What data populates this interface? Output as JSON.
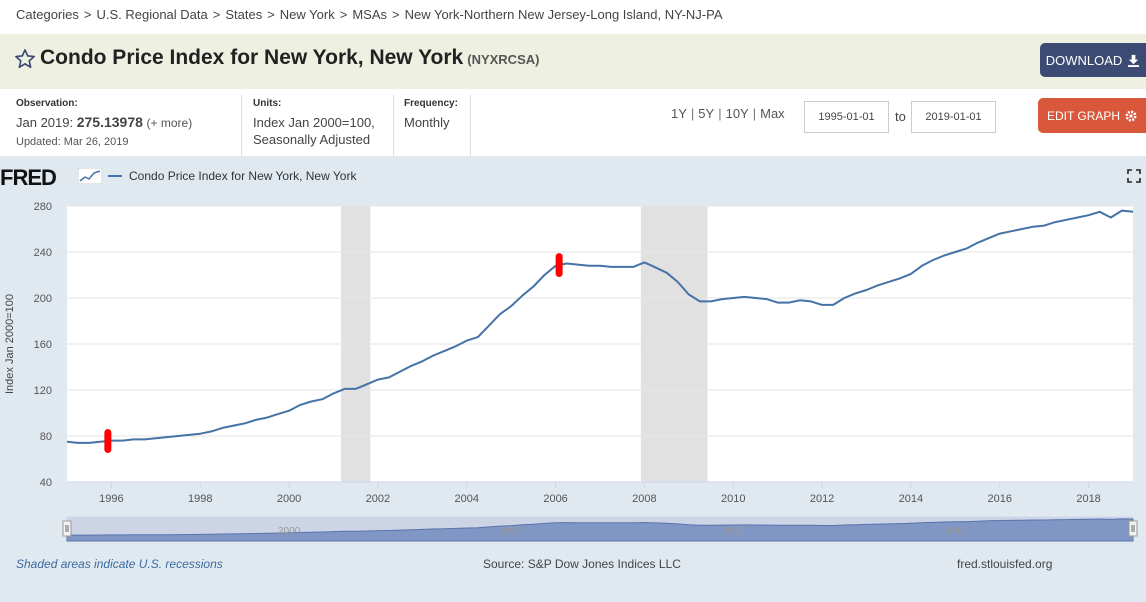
{
  "breadcrumb": [
    "Categories",
    "U.S. Regional Data",
    "States",
    "New York",
    "MSAs",
    "New York-Northern New Jersey-Long Island, NY-NJ-PA"
  ],
  "breadcrumb_sep": ">",
  "title": "Condo Price Index for New York, New York",
  "series_id": "(NYXRCSA)",
  "download_label": "DOWNLOAD",
  "observation": {
    "label": "Observation:",
    "period": "Jan 2019:",
    "value": "275.13978",
    "more": "(+ more)",
    "updated": "Updated: Mar 26, 2019"
  },
  "units": {
    "label": "Units:",
    "line1": "Index Jan 2000=100,",
    "line2": "Seasonally Adjusted"
  },
  "frequency": {
    "label": "Frequency:",
    "value": "Monthly"
  },
  "range_links": [
    "1Y",
    "5Y",
    "10Y",
    "Max"
  ],
  "date_from": "1995-01-01",
  "date_to": "2019-01-01",
  "to_label": "to",
  "edit_label": "EDIT GRAPH",
  "fred_logo": "FRED",
  "legend_label": "Condo Price Index for New York, New York",
  "recession_note": "Shaded areas indicate U.S. recessions",
  "source": "Source: S&P Dow Jones Indices LLC",
  "site": "fred.stlouisfed.org",
  "colors": {
    "line": "#4572a7",
    "recession": "#e1e1e1",
    "download": "#3b4b73",
    "edit": "#d9583b",
    "marker": "#ff0000"
  },
  "chart_data": {
    "type": "line",
    "ylabel": "Index Jan 2000=100",
    "xlim": [
      1995.0,
      2019.0
    ],
    "ylim": [
      40,
      280
    ],
    "yticks": [
      40,
      80,
      120,
      160,
      200,
      240,
      280
    ],
    "xticks": [
      1996,
      1998,
      2000,
      2002,
      2004,
      2006,
      2008,
      2010,
      2012,
      2014,
      2016,
      2018
    ],
    "recessions": [
      [
        2001.17,
        2001.83
      ],
      [
        2007.92,
        2009.42
      ]
    ],
    "navigator_labels": [
      "2000",
      "2005",
      "2010",
      "2015"
    ],
    "highlights": [
      1995.92,
      2006.08
    ],
    "series": [
      {
        "x": [
          1995.0,
          1995.25,
          1995.5,
          1995.75,
          1996.0,
          1996.25,
          1996.5,
          1996.75,
          1997.0,
          1997.25,
          1997.5,
          1997.75,
          1998.0,
          1998.25,
          1998.5,
          1998.75,
          1999.0,
          1999.25,
          1999.5,
          1999.75,
          2000.0,
          2000.25,
          2000.5,
          2000.75,
          2001.0,
          2001.25,
          2001.5,
          2001.75,
          2002.0,
          2002.25,
          2002.5,
          2002.75,
          2003.0,
          2003.25,
          2003.5,
          2003.75,
          2004.0,
          2004.25,
          2004.5,
          2004.75,
          2005.0,
          2005.25,
          2005.5,
          2005.75,
          2006.0,
          2006.25,
          2006.5,
          2006.75,
          2007.0,
          2007.25,
          2007.5,
          2007.75,
          2008.0,
          2008.17,
          2008.5,
          2008.75,
          2009.0,
          2009.25,
          2009.5,
          2009.75,
          2010.0,
          2010.25,
          2010.5,
          2010.75,
          2011.0,
          2011.25,
          2011.5,
          2011.75,
          2012.0,
          2012.25,
          2012.5,
          2012.75,
          2013.0,
          2013.25,
          2013.5,
          2013.75,
          2014.0,
          2014.25,
          2014.5,
          2014.75,
          2015.0,
          2015.25,
          2015.5,
          2015.75,
          2016.0,
          2016.25,
          2016.5,
          2016.75,
          2017.0,
          2017.25,
          2017.5,
          2017.75,
          2018.0,
          2018.25,
          2018.5,
          2018.75,
          2019.0
        ],
        "y": [
          75,
          74,
          74,
          75,
          76,
          76,
          77,
          77,
          78,
          79,
          80,
          81,
          82,
          84,
          87,
          89,
          91,
          94,
          96,
          99,
          102,
          107,
          110,
          112,
          117,
          121,
          121,
          125,
          129,
          131,
          136,
          141,
          145,
          150,
          154,
          158,
          163,
          166,
          176,
          186,
          193,
          202,
          210,
          220,
          228,
          230,
          229,
          228,
          228,
          227,
          227,
          227,
          231,
          228,
          222,
          214,
          203,
          197,
          197,
          199,
          200,
          201,
          200,
          199,
          196,
          196,
          198,
          197,
          194,
          194,
          200,
          204,
          207,
          211,
          214,
          217,
          221,
          228,
          233,
          237,
          240,
          243,
          248,
          252,
          256,
          258,
          260,
          262,
          263,
          266,
          268,
          270,
          272,
          275,
          270,
          276,
          275
        ]
      }
    ]
  }
}
